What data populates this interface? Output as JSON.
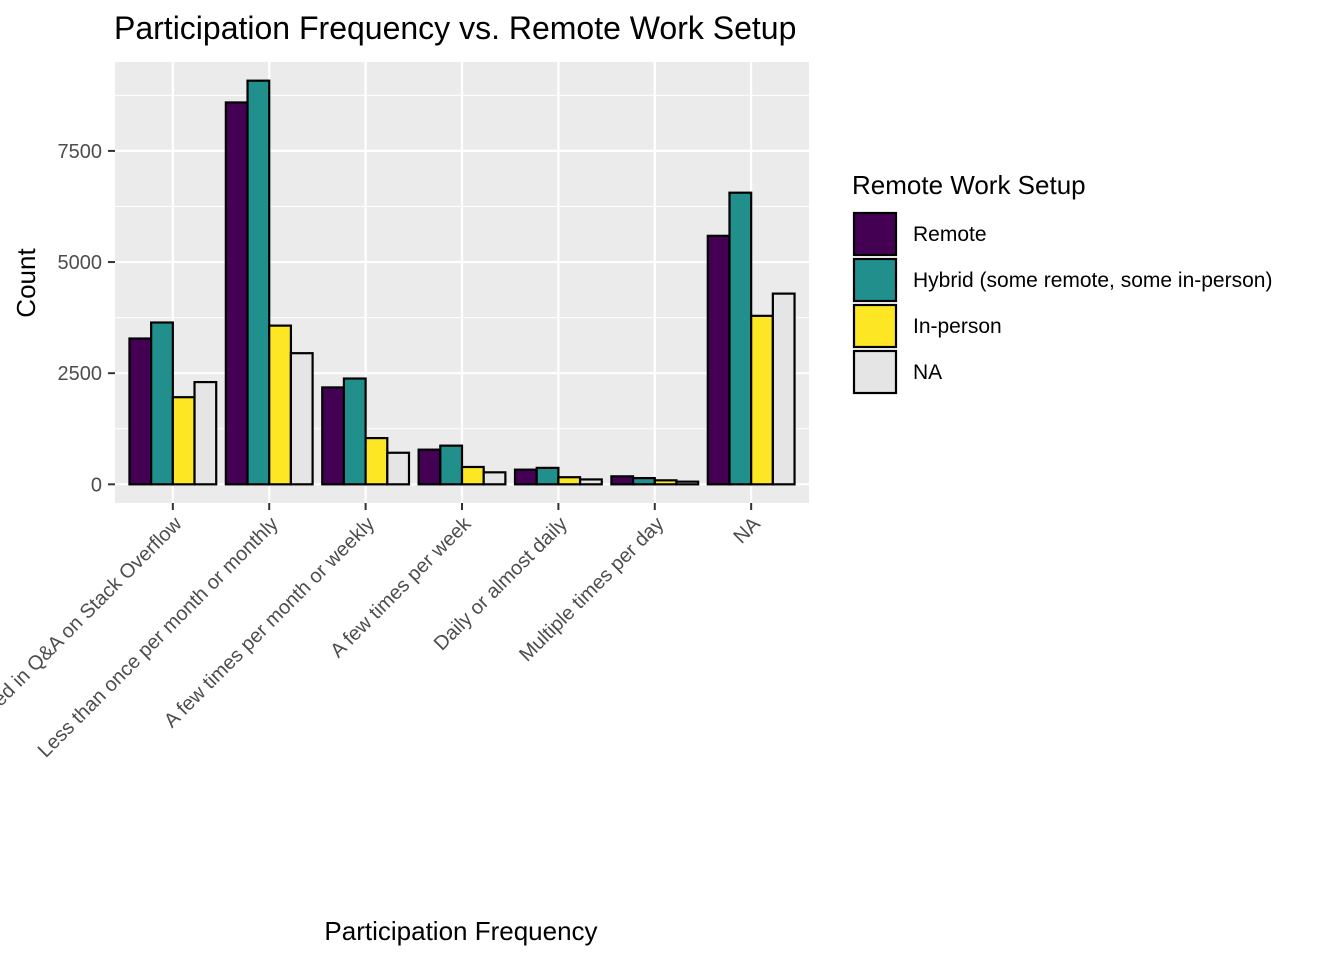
{
  "chart_data": {
    "type": "bar",
    "title": "Participation Frequency vs. Remote Work Setup",
    "xlabel": "Participation Frequency",
    "ylabel": "Count",
    "categories": [
      "I have never participated in Q&A on Stack Overflow",
      "Less than once per month or monthly",
      "A few times per month or weekly",
      "A few times per week",
      "Daily or almost daily",
      "Multiple times per day",
      "NA"
    ],
    "series": [
      {
        "name": "Remote",
        "color": "#440154",
        "values": [
          3280,
          8590,
          2180,
          780,
          330,
          180,
          5590
        ]
      },
      {
        "name": "Hybrid (some remote, some in-person)",
        "color": "#21908C",
        "values": [
          3640,
          9080,
          2380,
          870,
          370,
          140,
          6560
        ]
      },
      {
        "name": "In-person",
        "color": "#FDE725",
        "values": [
          1960,
          3570,
          1040,
          390,
          160,
          90,
          3790
        ]
      },
      {
        "name": "NA",
        "color": "#E5E5E5",
        "values": [
          2300,
          2950,
          710,
          270,
          110,
          60,
          4290
        ]
      }
    ],
    "ylim": [
      -420,
      9500
    ],
    "yticks": [
      0,
      2500,
      5000,
      7500
    ],
    "ytick_labels": [
      "0",
      "2500",
      "5000",
      "7500"
    ],
    "grid": true,
    "legend": {
      "title": "Remote Work Setup",
      "position": "right"
    },
    "colors": {
      "panel": "#EBEBEB",
      "grid": "#FFFFFF",
      "bar_outline": "#000000"
    }
  }
}
